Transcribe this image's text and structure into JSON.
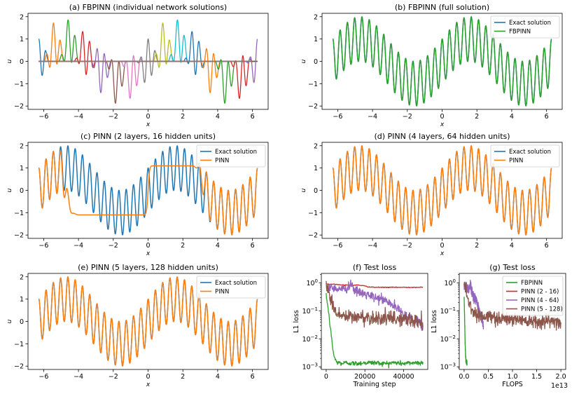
{
  "colors": {
    "c0": "#1f77b4",
    "c1": "#ff7f0e",
    "c2": "#2ca02c",
    "c3": "#d62728",
    "c4": "#9467bd",
    "c5": "#8c564b",
    "c6": "#e377c2",
    "c7": "#7f7f7f",
    "c8": "#bcbd22",
    "c9": "#17becf"
  },
  "chart_data": [
    {
      "id": "a",
      "type": "line",
      "title": "(a) FBPINN (individual network solutions)",
      "xlabel": "x",
      "ylabel": "u",
      "xlim": [
        -6.9,
        6.9
      ],
      "ylim": [
        -2.15,
        2.15
      ],
      "xticks": [
        -6,
        -4,
        -2,
        0,
        2,
        4,
        6
      ],
      "yticks": [
        -2,
        -1,
        0,
        1,
        2
      ],
      "function": "sin(x) + cos(15x) (exact); individual subdomain solutions windowed over 15 overlapping subdomains of [-2pi, 2pi]",
      "subdomains": 15,
      "series": []
    },
    {
      "id": "b",
      "type": "line",
      "title": "(b) FBPINN (full solution)",
      "xlabel": "x",
      "ylabel": "u",
      "xlim": [
        -6.9,
        6.9
      ],
      "ylim": [
        -2.15,
        2.15
      ],
      "xticks": [
        -6,
        -4,
        -2,
        0,
        2,
        4,
        6
      ],
      "yticks": [
        -2,
        -1,
        0,
        1,
        2
      ],
      "function": "u(x) = sin(x) + cos(15x) on [-2pi, 2pi]",
      "legend": "upper right",
      "series": [
        {
          "name": "Exact solution",
          "color": "#1f77b4",
          "kind": "exact"
        },
        {
          "name": "FBPINN",
          "color": "#2ca02c",
          "kind": "exact"
        }
      ]
    },
    {
      "id": "c",
      "type": "line",
      "title": "(c) PINN (2 layers, 16 hidden units)",
      "xlabel": "x",
      "ylabel": "u",
      "xlim": [
        -6.9,
        6.9
      ],
      "ylim": [
        -2.15,
        2.15
      ],
      "xticks": [
        -6,
        -4,
        -2,
        0,
        2,
        4,
        6
      ],
      "yticks": [
        -2,
        -1,
        0,
        1,
        2
      ],
      "legend": "upper right",
      "series": [
        {
          "name": "Exact solution",
          "color": "#1f77b4",
          "kind": "exact"
        },
        {
          "name": "PINN",
          "color": "#ff7f0e",
          "kind": "pinn_small",
          "description": "matches exact for x < -4.7 and x > 3.1; approx -1.1 on (-4.5, 0); approx 1.1 on (0, 3.1)"
        }
      ]
    },
    {
      "id": "d",
      "type": "line",
      "title": "(d) PINN (4 layers, 64 hidden units)",
      "xlabel": "x",
      "ylabel": "u",
      "xlim": [
        -6.9,
        6.9
      ],
      "ylim": [
        -2.15,
        2.15
      ],
      "xticks": [
        -6,
        -4,
        -2,
        0,
        2,
        4,
        6
      ],
      "yticks": [
        -2,
        -1,
        0,
        1,
        2
      ],
      "legend": "upper right",
      "series": [
        {
          "name": "Exact solution",
          "color": "#1f77b4",
          "kind": "exact"
        },
        {
          "name": "PINN",
          "color": "#ff7f0e",
          "kind": "exact"
        }
      ]
    },
    {
      "id": "e",
      "type": "line",
      "title": "(e) PINN (5 layers, 128 hidden units)",
      "xlabel": "x",
      "ylabel": "u",
      "xlim": [
        -6.9,
        6.9
      ],
      "ylim": [
        -2.15,
        2.15
      ],
      "xticks": [
        -6,
        -4,
        -2,
        0,
        2,
        4,
        6
      ],
      "yticks": [
        -2,
        -1,
        0,
        1,
        2
      ],
      "legend": "upper right",
      "series": [
        {
          "name": "Exact solution",
          "color": "#1f77b4",
          "kind": "exact"
        },
        {
          "name": "PINN",
          "color": "#ff7f0e",
          "kind": "exact"
        }
      ]
    },
    {
      "id": "f",
      "type": "line",
      "yscale": "log",
      "title": "(f) Test loss",
      "xlabel": "Training step",
      "ylabel": "L1 loss",
      "xlim": [
        -2500,
        52500
      ],
      "ylim": [
        0.0008,
        2.2
      ],
      "xticks": [
        0,
        20000,
        40000
      ],
      "xtick_labels": [
        "0",
        "20000",
        "40000"
      ],
      "yticks": [
        0.001,
        0.01,
        0.1,
        1
      ],
      "series": [
        {
          "name": "FBPINN",
          "color": "#2ca02c",
          "x": [
            0,
            500,
            1000,
            1500,
            2000,
            2500,
            3000,
            3500,
            4000,
            5000,
            6000,
            7000,
            8000,
            10000,
            15000,
            20000,
            25000,
            30000,
            35000,
            40000,
            45000,
            50000
          ],
          "y": [
            0.33,
            0.22,
            0.12,
            0.06,
            0.03,
            0.015,
            0.008,
            0.004,
            0.0025,
            0.0016,
            0.0014,
            0.0014,
            0.0013,
            0.0014,
            0.0013,
            0.0014,
            0.0014,
            0.0013,
            0.0014,
            0.0013,
            0.0014,
            0.0014
          ],
          "noise": 0.1
        },
        {
          "name": "PINN (2 - 16)",
          "color": "#d62728",
          "x": [
            0,
            1000,
            2000,
            4000,
            6000,
            8000,
            10000,
            12000,
            14000,
            16000,
            18000,
            20000,
            22000,
            25000,
            30000,
            35000,
            40000,
            45000,
            50000
          ],
          "y": [
            0.95,
            0.9,
            0.9,
            0.9,
            0.88,
            0.85,
            0.85,
            0.85,
            0.82,
            0.85,
            0.82,
            0.78,
            0.72,
            0.7,
            0.7,
            0.7,
            0.7,
            0.7,
            0.7
          ],
          "noise": 0.015
        },
        {
          "name": "PINN (4 - 64)",
          "color": "#9467bd",
          "x": [
            0,
            2000,
            5000,
            10000,
            13000,
            15000,
            20000,
            25000,
            30000,
            35000,
            40000,
            45000,
            50000
          ],
          "y": [
            0.8,
            0.7,
            0.65,
            0.6,
            1.0,
            0.5,
            0.4,
            0.3,
            0.25,
            0.15,
            0.08,
            0.05,
            0.03
          ],
          "noise": 0.2
        },
        {
          "name": "PINN (5 - 128)",
          "color": "#8c564b",
          "x": [
            0,
            1000,
            2000,
            3000,
            4000,
            5000,
            6000,
            8000,
            10000,
            20000,
            30000,
            40000,
            45000,
            50000
          ],
          "y": [
            1.0,
            0.6,
            0.3,
            0.2,
            0.12,
            0.1,
            0.08,
            0.07,
            0.06,
            0.06,
            0.055,
            0.05,
            0.045,
            0.04
          ],
          "noise": 0.3
        }
      ]
    },
    {
      "id": "g",
      "type": "line",
      "yscale": "log",
      "title": "(g) Test loss",
      "xlabel": "FLOPS",
      "ylabel": "L1 loss",
      "offset_label": "1e13",
      "xlim": [
        -0.1,
        2.1
      ],
      "ylim": [
        0.0008,
        2.2
      ],
      "xticks": [
        0,
        0.5,
        1.0,
        1.5,
        2.0
      ],
      "xtick_labels": [
        "0.0",
        "0.5",
        "1.0",
        "1.5",
        "2.0"
      ],
      "yticks": [
        0.001,
        0.01,
        0.1,
        1
      ],
      "legend": "upper right",
      "series": [
        {
          "name": "FBPINN",
          "color": "#2ca02c",
          "x": [
            0.0,
            0.01,
            0.02,
            0.03,
            0.04,
            0.05,
            0.06
          ],
          "y": [
            0.33,
            0.06,
            0.008,
            0.0025,
            0.0016,
            0.0014,
            0.0014
          ],
          "noise": 0.1
        },
        {
          "name": "PINN (2 - 16)",
          "color": "#d62728",
          "x": [
            0.0,
            0.01,
            0.02,
            0.03,
            0.04
          ],
          "y": [
            0.95,
            0.9,
            0.85,
            0.78,
            0.7
          ],
          "noise": 0.015
        },
        {
          "name": "PINN (4 - 64)",
          "color": "#9467bd",
          "x": [
            0.0,
            0.05,
            0.1,
            0.13,
            0.15,
            0.2,
            0.25,
            0.3,
            0.35,
            0.4
          ],
          "y": [
            0.8,
            0.7,
            0.6,
            1.0,
            0.5,
            0.35,
            0.25,
            0.12,
            0.06,
            0.03
          ],
          "noise": 0.2
        },
        {
          "name": "PINN (5 - 128)",
          "color": "#8c564b",
          "x": [
            0.0,
            0.05,
            0.1,
            0.15,
            0.2,
            0.3,
            0.5,
            0.8,
            1.0,
            1.2,
            1.5,
            1.8,
            2.0
          ],
          "y": [
            1.0,
            0.5,
            0.2,
            0.12,
            0.09,
            0.07,
            0.06,
            0.055,
            0.05,
            0.05,
            0.045,
            0.042,
            0.04
          ],
          "noise": 0.3
        }
      ]
    }
  ]
}
